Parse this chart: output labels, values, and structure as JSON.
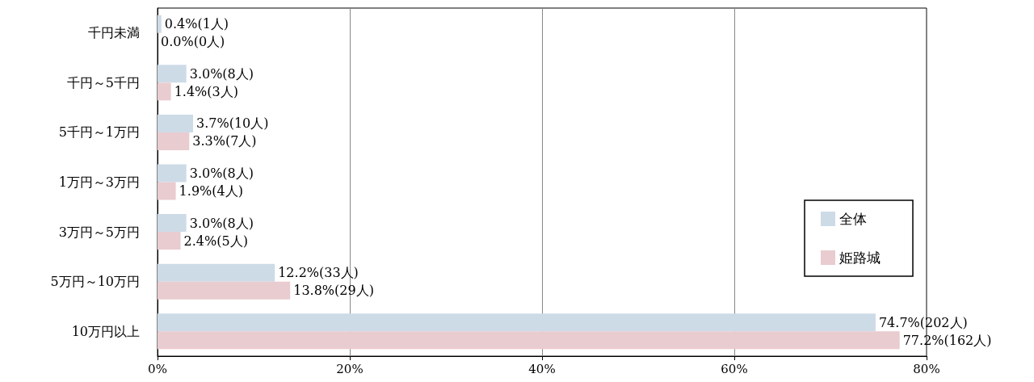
{
  "chart_data": {
    "type": "bar",
    "orientation": "horizontal",
    "categories": [
      "千円未満",
      "千円～5千円",
      "5千円～1万円",
      "1万円～3万円",
      "3万円～5万円",
      "5万円～10万円",
      "10万円以上"
    ],
    "series": [
      {
        "name": "全体",
        "color": "#cddbe7",
        "values": [
          0.4,
          3.0,
          3.7,
          3.0,
          3.0,
          12.2,
          74.7
        ],
        "value_labels": [
          "0.4%(1人)",
          "3.0%(8人)",
          "3.7%(10人)",
          "3.0%(8人)",
          "3.0%(8人)",
          "12.2%(33人)",
          "74.7%(202人)"
        ]
      },
      {
        "name": "姫路城",
        "color": "#e9ccd0",
        "values": [
          0.0,
          1.4,
          3.3,
          1.9,
          2.4,
          13.8,
          77.2
        ],
        "value_labels": [
          "0.0%(0人)",
          "1.4%(3人)",
          "3.3%(7人)",
          "1.9%(4人)",
          "2.4%(5人)",
          "13.8%(29人)",
          "77.2%(162人)"
        ]
      }
    ],
    "xlim": [
      0,
      80
    ],
    "xticks": [
      {
        "value": 0,
        "label": "0%"
      },
      {
        "value": 20,
        "label": "20%"
      },
      {
        "value": 40,
        "label": "40%"
      },
      {
        "value": 60,
        "label": "60%"
      },
      {
        "value": 80,
        "label": "80%"
      }
    ],
    "grid": "x",
    "legend": "right"
  }
}
